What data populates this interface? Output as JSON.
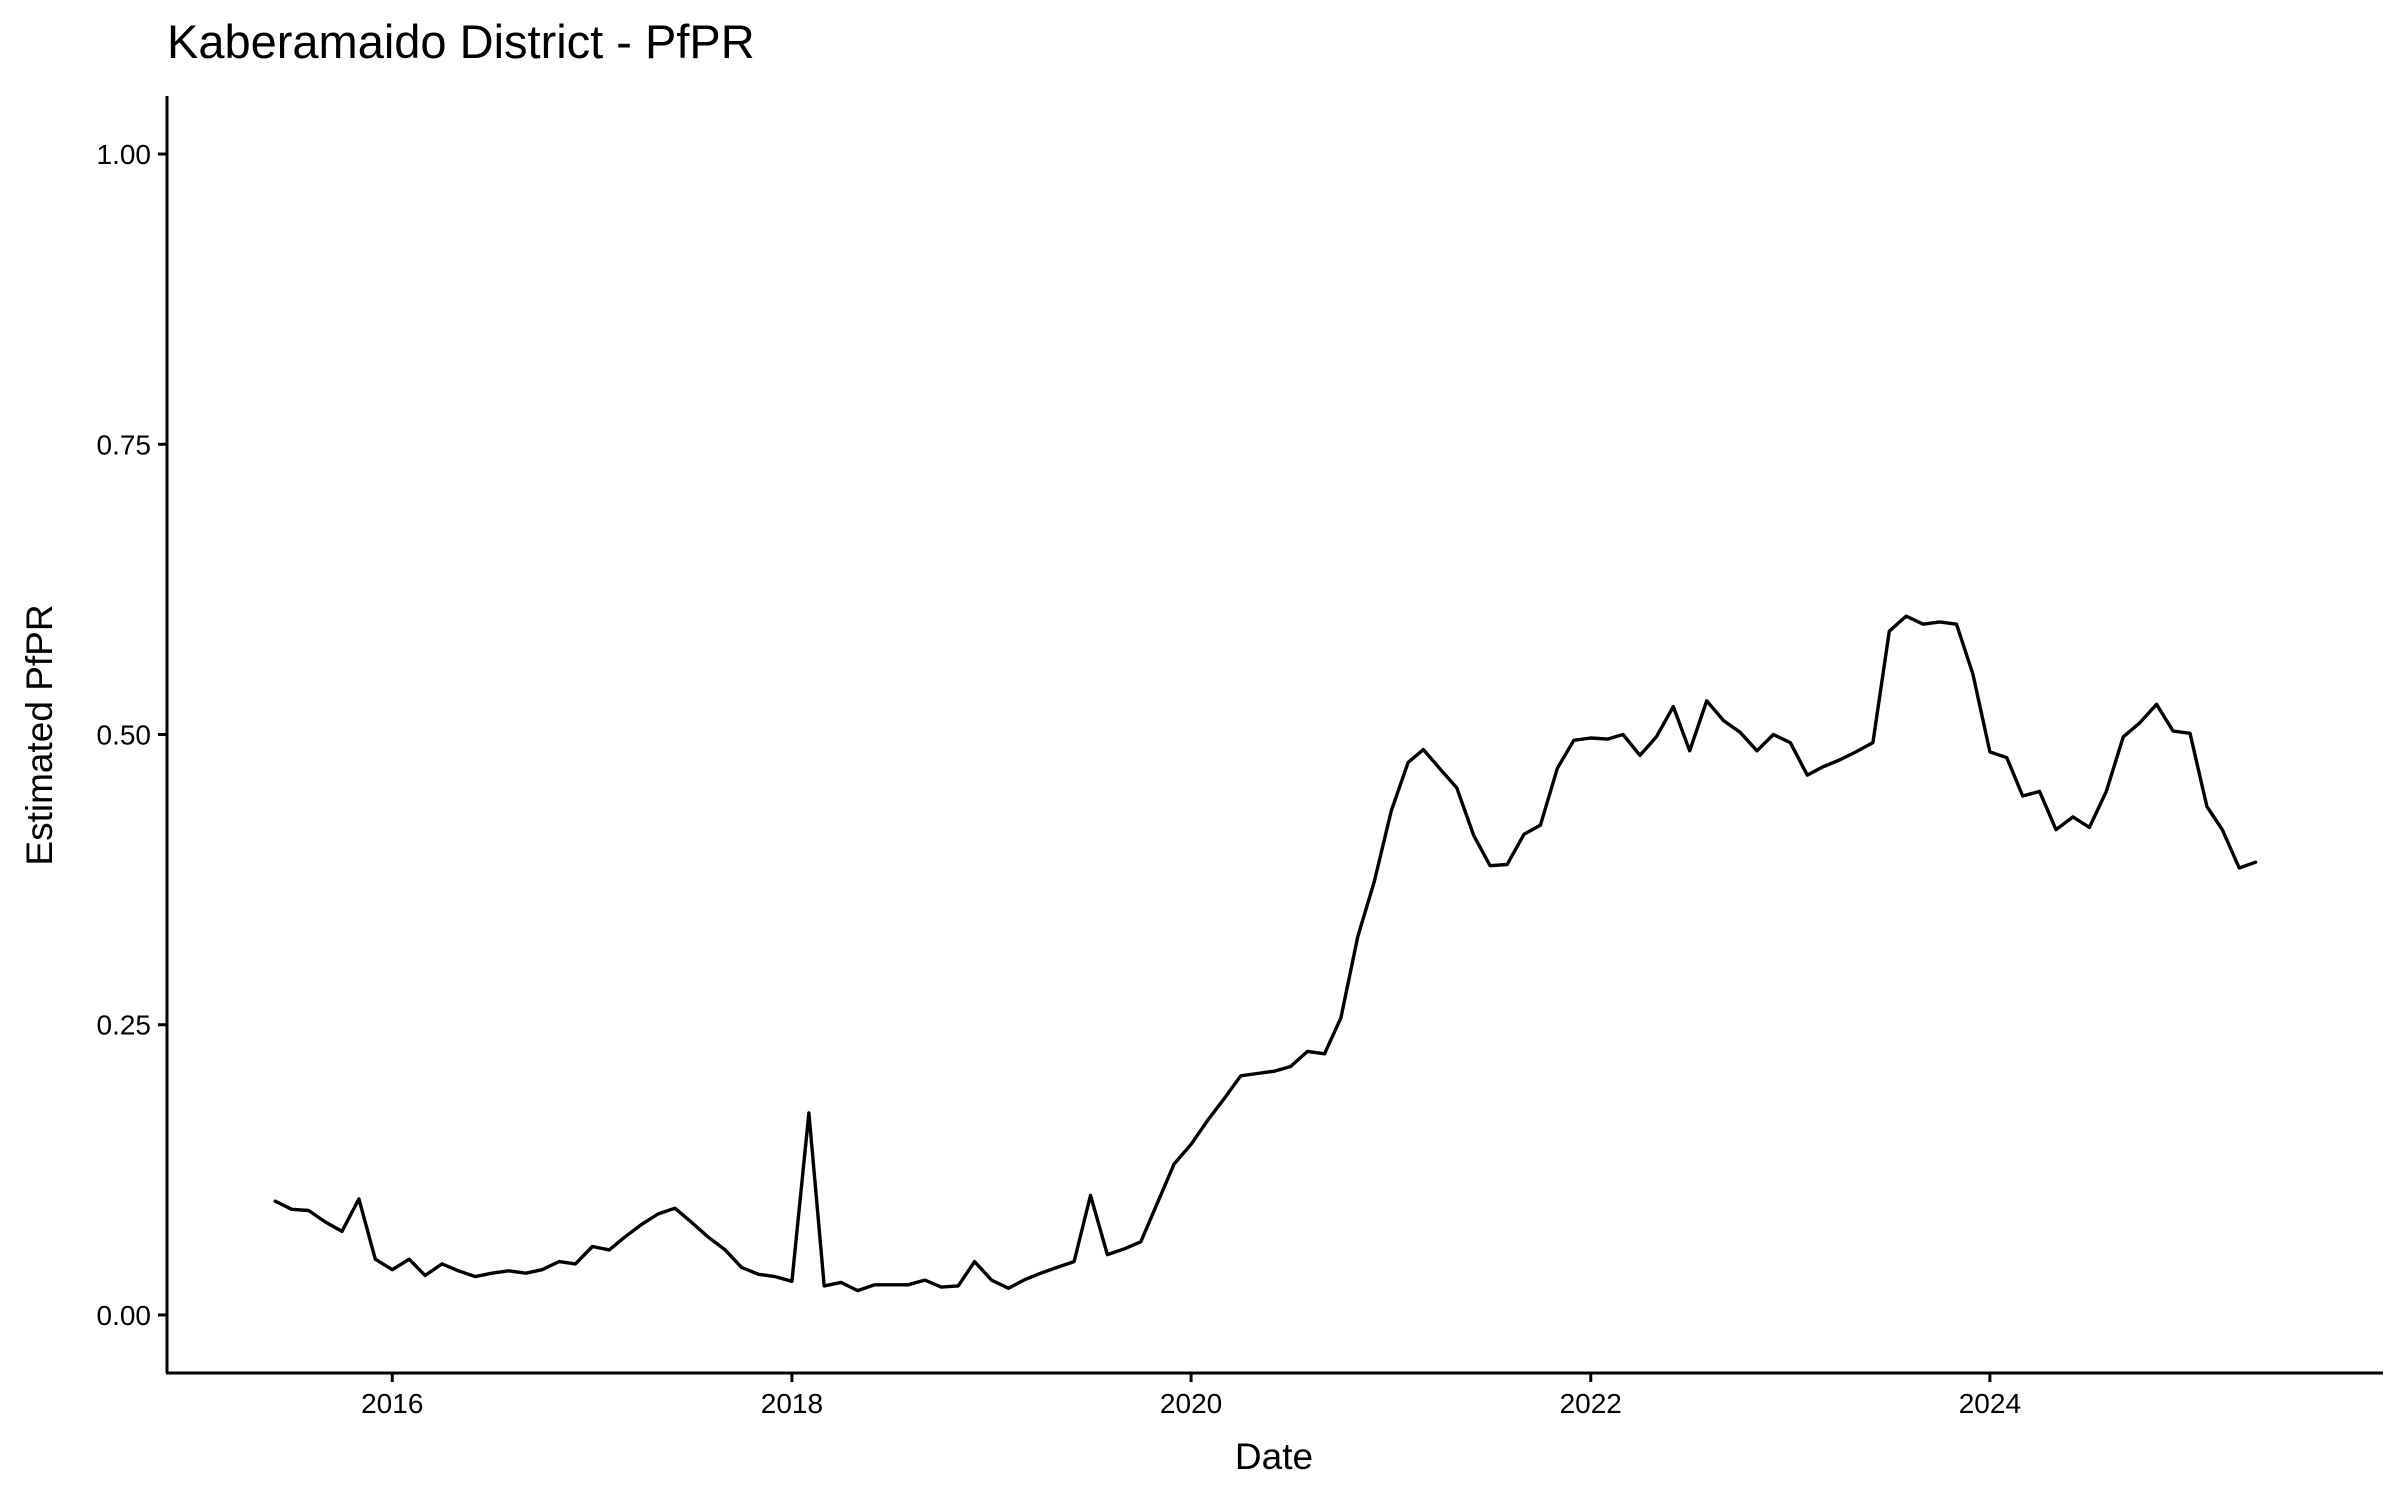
{
  "chart_data": {
    "type": "line",
    "title": "Kaberamaido District - PfPR",
    "xlabel": "Date",
    "ylabel": "Estimated PfPR",
    "x_tick_labels": [
      "2016",
      "2018",
      "2020",
      "2022",
      "2024"
    ],
    "y_tick_labels": [
      "0.00",
      "0.25",
      "0.50",
      "0.75",
      "1.00"
    ],
    "y_ticks": [
      0,
      0.25,
      0.5,
      0.75,
      1.0
    ],
    "ylim": [
      -0.05,
      1.05
    ],
    "xlim": [
      "2014-11-15",
      "2025-12-20"
    ],
    "grid": false,
    "legend": "none",
    "series": [
      {
        "x": [
          "2015-06",
          "2015-07",
          "2015-08",
          "2015-09",
          "2015-10",
          "2015-11",
          "2015-12",
          "2016-01",
          "2016-02",
          "2016-03",
          "2016-04",
          "2016-05",
          "2016-06",
          "2016-07",
          "2016-08",
          "2016-09",
          "2016-10",
          "2016-11",
          "2016-12",
          "2017-01",
          "2017-02",
          "2017-03",
          "2017-04",
          "2017-05",
          "2017-06",
          "2017-07",
          "2017-08",
          "2017-09",
          "2017-10",
          "2017-11",
          "2017-12",
          "2018-01",
          "2018-02",
          "2018-03",
          "2018-04",
          "2018-05",
          "2018-06",
          "2018-07",
          "2018-08",
          "2018-09",
          "2018-10",
          "2018-11",
          "2018-12",
          "2019-01",
          "2019-02",
          "2019-03",
          "2019-04",
          "2019-05",
          "2019-06",
          "2019-07",
          "2019-08",
          "2019-09",
          "2019-10",
          "2019-11",
          "2019-12",
          "2020-01",
          "2020-02",
          "2020-03",
          "2020-04",
          "2020-05",
          "2020-06",
          "2020-07",
          "2020-08",
          "2020-09",
          "2020-10",
          "2020-11",
          "2020-12",
          "2021-01",
          "2021-02",
          "2021-03",
          "2021-04",
          "2021-05",
          "2021-06",
          "2021-07",
          "2021-08",
          "2021-09",
          "2021-10",
          "2021-11",
          "2021-12",
          "2022-01",
          "2022-02",
          "2022-03",
          "2022-04",
          "2022-05",
          "2022-06",
          "2022-07",
          "2022-08",
          "2022-09",
          "2022-10",
          "2022-11",
          "2022-12",
          "2023-01",
          "2023-02",
          "2023-03",
          "2023-04",
          "2023-05",
          "2023-06",
          "2023-07",
          "2023-08",
          "2023-09",
          "2023-10",
          "2023-11",
          "2023-12",
          "2024-01",
          "2024-02",
          "2024-03",
          "2024-04",
          "2024-05",
          "2024-06",
          "2024-07",
          "2024-08",
          "2024-09",
          "2024-10",
          "2024-11",
          "2024-12",
          "2025-01",
          "2025-02",
          "2025-03",
          "2025-04",
          "2025-05"
        ],
        "values": [
          0.098,
          0.091,
          0.09,
          0.08,
          0.072,
          0.1,
          0.048,
          0.039,
          0.048,
          0.034,
          0.044,
          0.038,
          0.033,
          0.036,
          0.038,
          0.036,
          0.039,
          0.046,
          0.044,
          0.059,
          0.056,
          0.067,
          0.078,
          0.087,
          0.092,
          0.08,
          0.067,
          0.056,
          0.041,
          0.035,
          0.033,
          0.029,
          0.174,
          0.025,
          0.028,
          0.021,
          0.026,
          0.026,
          0.026,
          0.03,
          0.024,
          0.025,
          0.046,
          0.03,
          0.023,
          0.03,
          0.036,
          0.041,
          0.046,
          0.103,
          0.052,
          0.057,
          0.063,
          0.097,
          0.13,
          0.147,
          0.168,
          0.186,
          0.206,
          0.208,
          0.21,
          0.214,
          0.227,
          0.225,
          0.256,
          0.326,
          0.373,
          0.434,
          0.476,
          0.487,
          0.47,
          0.454,
          0.413,
          0.387,
          0.388,
          0.414,
          0.422,
          0.471,
          0.495,
          0.497,
          0.496,
          0.5,
          0.482,
          0.498,
          0.524,
          0.486,
          0.529,
          0.512,
          0.502,
          0.486,
          0.5,
          0.493,
          0.465,
          0.472,
          0.478,
          0.485,
          0.493,
          0.589,
          0.602,
          0.595,
          0.597,
          0.595,
          0.552,
          0.485,
          0.48,
          0.447,
          0.451,
          0.418,
          0.429,
          0.42,
          0.451,
          0.498,
          0.51,
          0.526,
          0.503,
          0.501,
          0.438,
          0.418,
          0.385,
          0.39
        ]
      }
    ]
  }
}
